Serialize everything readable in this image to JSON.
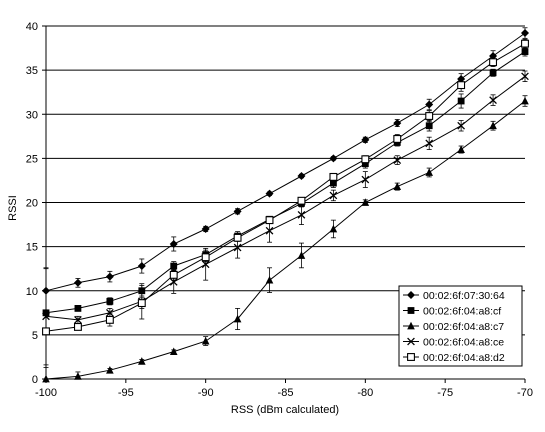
{
  "chart_data": {
    "type": "line",
    "title": "",
    "xlabel": "RSS (dBm calculated)",
    "ylabel": "RSSI",
    "xlim": [
      -100,
      -70
    ],
    "ylim": [
      0,
      40
    ],
    "xticks": [
      -100,
      -95,
      -90,
      -85,
      -80,
      -75,
      -70
    ],
    "yticks": [
      0,
      5,
      10,
      15,
      20,
      25,
      30,
      35,
      40
    ],
    "grid": "horizontal",
    "legend_position": "bottom-right",
    "x": [
      -100,
      -98,
      -96,
      -94,
      -92,
      -90,
      -88,
      -86,
      -84,
      -82,
      -80,
      -78,
      -76,
      -74,
      -72,
      -70
    ],
    "series": [
      {
        "name": "00:02:6f:07:30:64",
        "marker": "diamond",
        "values": [
          10.0,
          10.9,
          11.6,
          12.8,
          15.3,
          17.0,
          19.0,
          21.0,
          23.0,
          25.0,
          27.1,
          29.0,
          31.1,
          34.0,
          36.6,
          39.2
        ],
        "error": [
          2.5,
          0.5,
          0.6,
          0.8,
          0.8,
          0.3,
          0.3,
          0.2,
          0.2,
          0.2,
          0.3,
          0.4,
          0.6,
          0.6,
          0.6,
          0.6
        ]
      },
      {
        "name": "00:02:6f:04:a8:cf",
        "marker": "filled-square",
        "values": [
          7.5,
          8.0,
          8.8,
          10.0,
          12.8,
          14.1,
          16.2,
          18.1,
          19.9,
          22.2,
          24.4,
          26.8,
          28.7,
          31.5,
          34.7,
          37.1
        ],
        "error": [
          0.3,
          0.3,
          0.4,
          0.6,
          0.5,
          0.5,
          0.5,
          0.3,
          0.4,
          0.5,
          0.5,
          0.4,
          0.6,
          0.8,
          0.4,
          0.5
        ]
      },
      {
        "name": "00:02:6f:04:a8:c7",
        "marker": "triangle",
        "values": [
          0.0,
          0.3,
          1.0,
          2.0,
          3.1,
          4.3,
          6.8,
          11.2,
          14.0,
          17.0,
          20.0,
          21.8,
          23.4,
          26.0,
          28.7,
          31.5
        ],
        "error": [
          1.3,
          0.5,
          0.2,
          0.2,
          0.2,
          0.5,
          1.2,
          1.4,
          1.4,
          1.0,
          0.3,
          0.4,
          0.5,
          0.4,
          0.5,
          0.6
        ]
      },
      {
        "name": "00:02:6f:04:a8:ce",
        "marker": "x",
        "values": [
          7.1,
          6.7,
          7.5,
          8.8,
          11.0,
          13.0,
          14.9,
          16.8,
          18.6,
          20.8,
          22.6,
          24.8,
          26.7,
          28.7,
          31.6,
          34.3
        ],
        "error": [
          5.5,
          0.4,
          0.5,
          2.0,
          1.3,
          1.8,
          1.2,
          1.3,
          1.1,
          0.6,
          0.9,
          0.5,
          0.7,
          0.6,
          0.6,
          0.6
        ]
      },
      {
        "name": "00:02:6f:04:a8:d2",
        "marker": "open-square",
        "values": [
          5.4,
          5.9,
          6.7,
          8.6,
          11.8,
          13.8,
          16.0,
          18.0,
          20.2,
          22.9,
          24.9,
          27.2,
          29.8,
          33.3,
          35.9,
          38.0
        ],
        "error": [
          0.3,
          0.3,
          0.7,
          0.6,
          0.6,
          0.5,
          0.4,
          0.2,
          0.3,
          0.4,
          0.4,
          0.5,
          0.6,
          0.7,
          0.5,
          0.5
        ]
      }
    ]
  }
}
